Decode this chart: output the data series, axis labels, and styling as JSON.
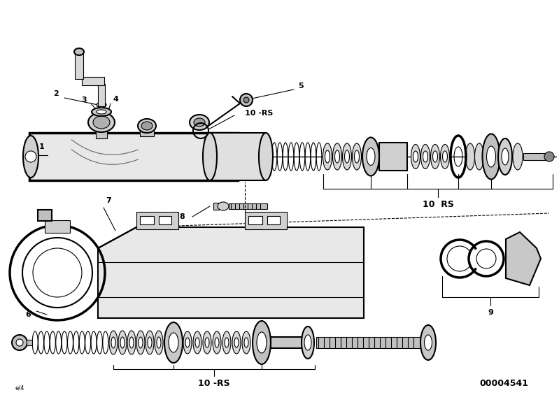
{
  "bg_color": "#ffffff",
  "line_color": "#000000",
  "fig_width": 7.99,
  "fig_height": 5.65,
  "dpi": 100,
  "part_number": "00004541",
  "label_10RS_upper": "10  RS",
  "label_10RS_lower": "10 -RS",
  "label_10RS_mid": "10 -RS"
}
